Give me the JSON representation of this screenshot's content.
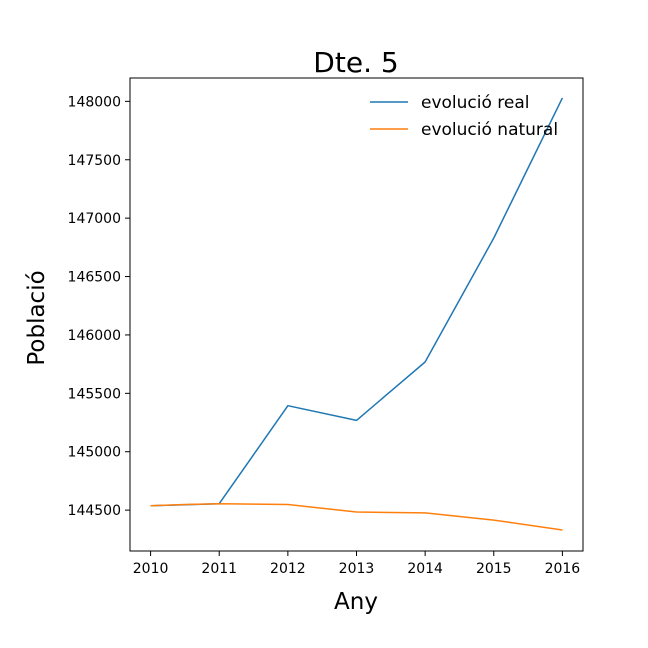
{
  "chart_data": {
    "type": "line",
    "title": "Dte. 5",
    "xlabel": "Any",
    "ylabel": "Població",
    "x": [
      2010,
      2010.5,
      2011,
      2012,
      2013,
      2014,
      2015,
      2016
    ],
    "xticks": [
      "2010",
      "2011",
      "2012",
      "2013",
      "2014",
      "2015",
      "2016"
    ],
    "yticks": [
      "144500",
      "145000",
      "145500",
      "146000",
      "146500",
      "147000",
      "147500",
      "148000"
    ],
    "xlim": [
      2009.7,
      2016.3
    ],
    "ylim": [
      144150,
      148200
    ],
    "grid": false,
    "legend_position": "upper-right",
    "series": [
      {
        "name": "evolució real",
        "color": "#1f77b4",
        "x": [
          2010,
          2011,
          2012,
          2013,
          2014,
          2015,
          2016
        ],
        "values": [
          144538,
          144555,
          145394,
          145268,
          145768,
          146830,
          148030
        ]
      },
      {
        "name": "evolució natural",
        "color": "#ff7f0e",
        "x": [
          2010,
          2010.5,
          2011,
          2012,
          2013,
          2014,
          2015,
          2016
        ],
        "values": [
          144538,
          144548,
          144555,
          144548,
          144484,
          144476,
          144415,
          144330
        ]
      }
    ]
  }
}
